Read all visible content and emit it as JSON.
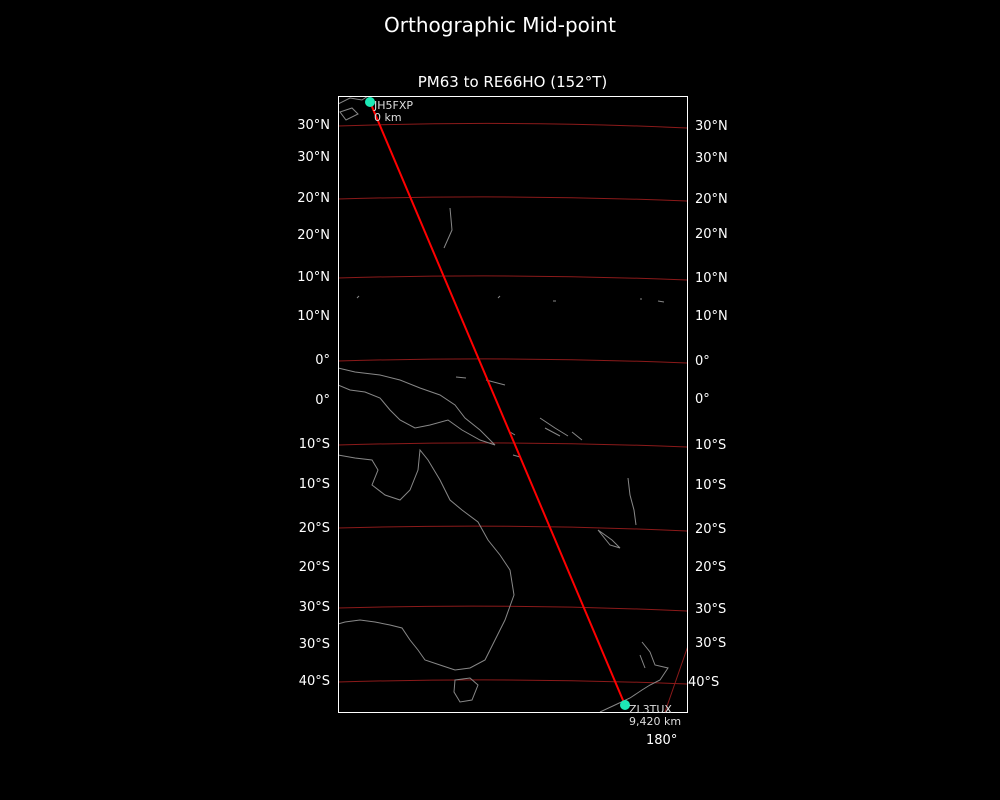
{
  "title": "Orthographic Mid-point",
  "subtitle": "PM63 to RE66HO (152°T)",
  "colors": {
    "background": "#000000",
    "path": "#ff0000",
    "graticule": "#8b1a1a",
    "coastline": "#888888",
    "endpoint": "#1de9b6"
  },
  "lat_labels_left": [
    "30°N",
    "30°N",
    "20°N",
    "20°N",
    "10°N",
    "10°N",
    "0°",
    "0°",
    "10°S",
    "10°S",
    "20°S",
    "20°S",
    "30°S",
    "30°S",
    "40°S"
  ],
  "lat_labels_right": [
    "30°N",
    "30°N",
    "20°N",
    "20°N",
    "10°N",
    "10°N",
    "0°",
    "0°",
    "10°S",
    "10°S",
    "20°S",
    "20°S",
    "30°S",
    "30°S",
    "40°S"
  ],
  "lon_label": "180°",
  "start": {
    "call": "JH5FXP",
    "dist": "0 km"
  },
  "end": {
    "call": "ZL3TUX",
    "dist": "9,420 km"
  }
}
